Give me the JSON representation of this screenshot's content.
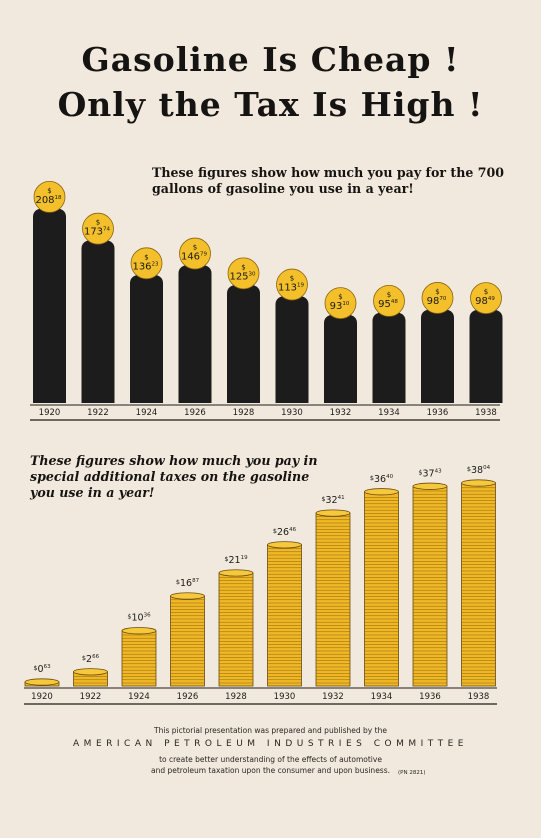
{
  "title_line1": "Gasoline Is Cheap !",
  "title_line2": "Only the Tax Is High !",
  "chart_data": [
    {
      "type": "bar",
      "title": "These figures show how much you pay for the 700 gallons of gasoline you use in a year!",
      "categories": [
        "1920",
        "1922",
        "1924",
        "1926",
        "1928",
        "1930",
        "1932",
        "1934",
        "1936",
        "1938"
      ],
      "values": [
        208.18,
        173.74,
        136.23,
        146.79,
        125.3,
        113.19,
        93.1,
        95.48,
        98.7,
        98.49
      ],
      "value_labels": [
        {
          "dollars": "208",
          "cents": "18"
        },
        {
          "dollars": "173",
          "cents": "74"
        },
        {
          "dollars": "136",
          "cents": "23"
        },
        {
          "dollars": "146",
          "cents": "79"
        },
        {
          "dollars": "125",
          "cents": "30"
        },
        {
          "dollars": "113",
          "cents": "19"
        },
        {
          "dollars": "93",
          "cents": "10"
        },
        {
          "dollars": "95",
          "cents": "48"
        },
        {
          "dollars": "98",
          "cents": "70"
        },
        {
          "dollars": "98",
          "cents": "49"
        }
      ],
      "xlabel": "",
      "ylabel": "",
      "ylim": [
        0,
        220
      ],
      "colors": {
        "bar": "#1c1c1c",
        "coin": "#f3bf2b"
      }
    },
    {
      "type": "bar",
      "title": "These figures show how much you pay in special additional taxes on the gasoline you use in a year!",
      "categories": [
        "1920",
        "1922",
        "1924",
        "1926",
        "1928",
        "1930",
        "1932",
        "1934",
        "1936",
        "1938"
      ],
      "values": [
        0.63,
        2.66,
        10.36,
        16.87,
        21.19,
        26.46,
        32.41,
        36.4,
        37.43,
        38.04
      ],
      "value_labels": [
        {
          "dollars": "0",
          "cents": "63"
        },
        {
          "dollars": "2",
          "cents": "66"
        },
        {
          "dollars": "10",
          "cents": "36"
        },
        {
          "dollars": "16",
          "cents": "87"
        },
        {
          "dollars": "21",
          "cents": "19"
        },
        {
          "dollars": "26",
          "cents": "46"
        },
        {
          "dollars": "32",
          "cents": "41"
        },
        {
          "dollars": "36",
          "cents": "40"
        },
        {
          "dollars": "37",
          "cents": "43"
        },
        {
          "dollars": "38",
          "cents": "04"
        }
      ],
      "xlabel": "",
      "ylabel": "",
      "ylim": [
        0,
        40
      ],
      "colors": {
        "coin": "#f0b824",
        "coin_edge": "#6b4a12"
      }
    }
  ],
  "footer": {
    "line1": "This pictorial presentation was prepared and published by the",
    "line2": "AMERICAN PETROLEUM INDUSTRIES COMMITTEE",
    "line3": "to create better understanding of the effects of automotive",
    "line4": "and petroleum taxation upon the consumer and upon business.",
    "code": "(PN 2821)"
  }
}
